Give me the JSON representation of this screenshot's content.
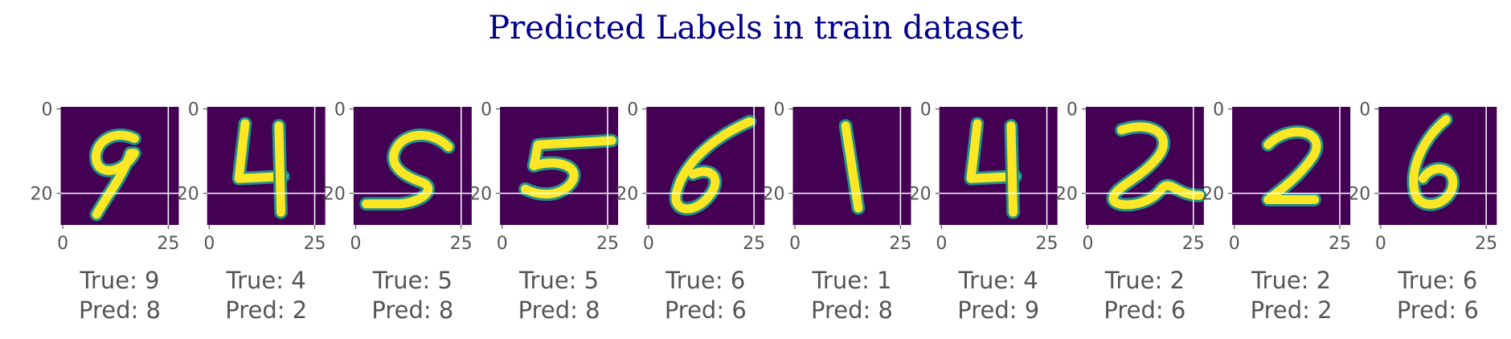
{
  "title": "Predicted Labels in train dataset",
  "colors": {
    "title": "#00008b",
    "background": "#440154",
    "stroke_edge": "#21918c",
    "stroke_core": "#fde725",
    "tick_text": "#555555",
    "grid": "#ffffff"
  },
  "chart_data": {
    "type": "image-grid",
    "cmap": "viridis",
    "x_ticks": [
      "0",
      "25"
    ],
    "y_ticks": [
      "0",
      "20"
    ],
    "grid": true,
    "image_size": [
      28,
      28
    ],
    "panels": [
      {
        "true_label": "True: 9",
        "pred_label": "Pred: 8",
        "digit": "9"
      },
      {
        "true_label": "True: 4",
        "pred_label": "Pred: 2",
        "digit": "4"
      },
      {
        "true_label": "True: 5",
        "pred_label": "Pred: 8",
        "digit": "5"
      },
      {
        "true_label": "True: 5",
        "pred_label": "Pred: 8",
        "digit": "5"
      },
      {
        "true_label": "True: 6",
        "pred_label": "Pred: 6",
        "digit": "6"
      },
      {
        "true_label": "True: 1",
        "pred_label": "Pred: 8",
        "digit": "1"
      },
      {
        "true_label": "True: 4",
        "pred_label": "Pred: 9",
        "digit": "4"
      },
      {
        "true_label": "True: 2",
        "pred_label": "Pred: 6",
        "digit": "2"
      },
      {
        "true_label": "True: 2",
        "pred_label": "Pred: 2",
        "digit": "2"
      },
      {
        "true_label": "True: 6",
        "pred_label": "Pred: 6",
        "digit": "6"
      }
    ]
  }
}
